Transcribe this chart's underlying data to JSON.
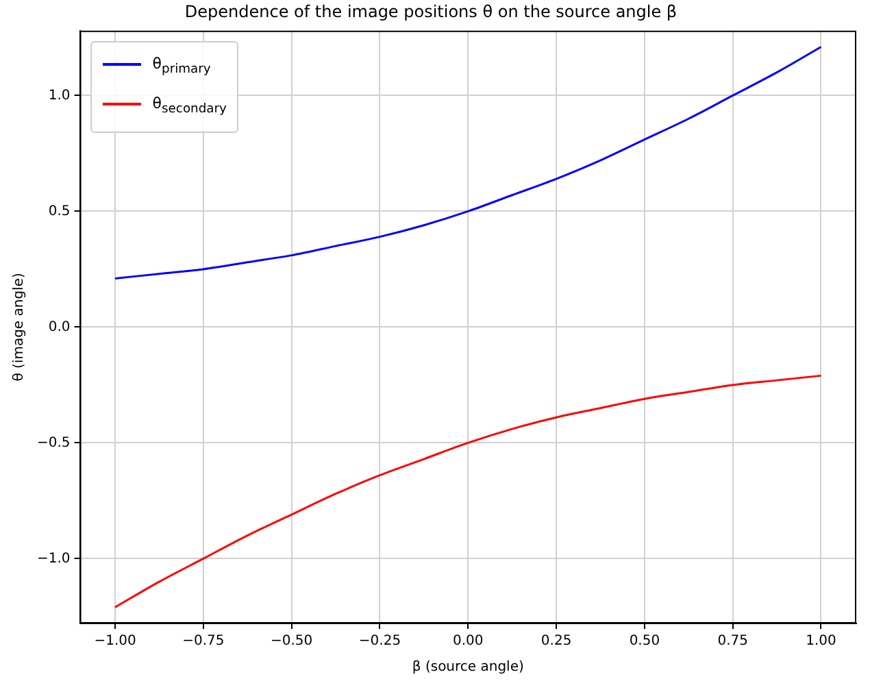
{
  "chart_data": {
    "type": "line",
    "title": "Dependence of the image positions θ on the source angle β",
    "xlabel": "β (source angle)",
    "ylabel": "θ (image angle)",
    "x": [
      -1,
      -0.875,
      -0.75,
      -0.625,
      -0.5,
      -0.375,
      -0.25,
      -0.125,
      0,
      0.125,
      0.25,
      0.375,
      0.5,
      0.625,
      0.75,
      0.875,
      1
    ],
    "series": [
      {
        "name": "θ$_{primary}$",
        "color": "#0000ff",
        "values": [
          0.21,
          0.23,
          0.25,
          0.28,
          0.31,
          0.35,
          0.39,
          0.44,
          0.5,
          0.57,
          0.64,
          0.72,
          0.81,
          0.9,
          1.0,
          1.1,
          1.21
        ]
      },
      {
        "name": "θ$_{secondary}$",
        "color": "#ff0000",
        "values": [
          -1.21,
          -1.1,
          -1.0,
          -0.9,
          -0.81,
          -0.72,
          -0.64,
          -0.57,
          -0.5,
          -0.44,
          -0.39,
          -0.35,
          -0.31,
          -0.28,
          -0.25,
          -0.23,
          -0.21
        ]
      }
    ],
    "xlim": [
      -1.1,
      1.1
    ],
    "xticks": [
      {
        "value": -1,
        "label": "−1.00"
      },
      {
        "value": -0.75,
        "label": "−0.75"
      },
      {
        "value": -0.5,
        "label": "−0.50"
      },
      {
        "value": -0.25,
        "label": "−0.25"
      },
      {
        "value": 0,
        "label": "0.00"
      },
      {
        "value": 0.25,
        "label": "0.25"
      },
      {
        "value": 0.5,
        "label": "0.50"
      },
      {
        "value": 0.75,
        "label": "0.75"
      },
      {
        "value": 1,
        "label": "1.00"
      }
    ],
    "ylim": [
      -1.28,
      1.28
    ],
    "yticks": [
      {
        "value": -1,
        "label": "−1.0"
      },
      {
        "value": -0.5,
        "label": "−0.5"
      },
      {
        "value": 0,
        "label": "0.0"
      },
      {
        "value": 0.5,
        "label": "0.5"
      },
      {
        "value": 1,
        "label": "1.0"
      }
    ],
    "grid": true,
    "legend": "top left",
    "marker": "none",
    "line_style": "solid"
  }
}
